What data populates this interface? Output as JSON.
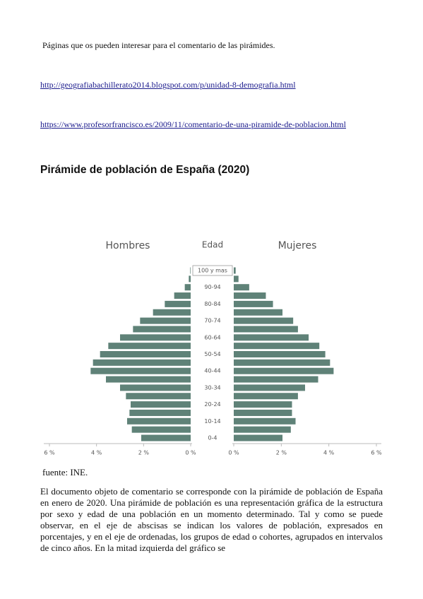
{
  "intro": "Páginas que os pueden interesar para el comentario de las pirámides.",
  "links": [
    "http://geografiabachillerato2014.blogspot.com/p/unidad-8-demografia.html",
    "https://www.profesorfrancisco.es/2009/11/comentario-de-una-piramide-de-poblacion.html"
  ],
  "heading": "Pirámide de población de España (2020)",
  "pyramid": {
    "type": "pyramid",
    "axis_title": "Edad",
    "categories": [
      "0-4",
      null,
      "10-14",
      null,
      "20-24",
      null,
      "30-34",
      null,
      "40-44",
      null,
      "50-54",
      null,
      "60-64",
      null,
      "70-74",
      null,
      "80-84",
      null,
      "90-94",
      null,
      "100 y mas"
    ],
    "series": [
      {
        "name": "Hombres",
        "color": "#5f8278",
        "values": [
          2.1,
          2.5,
          2.7,
          2.6,
          2.55,
          2.75,
          3.0,
          3.6,
          4.25,
          4.15,
          3.85,
          3.5,
          3.0,
          2.45,
          2.15,
          1.6,
          1.1,
          0.7,
          0.25,
          0.08,
          0.02
        ]
      },
      {
        "name": "Mujeres",
        "color": "#5f8278",
        "values": [
          2.05,
          2.4,
          2.6,
          2.45,
          2.45,
          2.7,
          3.0,
          3.55,
          4.2,
          4.05,
          3.85,
          3.6,
          3.15,
          2.7,
          2.5,
          2.05,
          1.65,
          1.35,
          0.65,
          0.2,
          0.08
        ]
      }
    ],
    "xlim": [
      0,
      6
    ],
    "xticks": [
      {
        "value": 0,
        "label": "0 %"
      },
      {
        "value": 2,
        "label": "2 %"
      },
      {
        "value": 4,
        "label": "4 %"
      },
      {
        "value": 6,
        "label": "6 %"
      }
    ]
  },
  "source": "fuente: INE.",
  "paragraph": "El documento objeto de comentario se corresponde con la pirámide de población de España en enero de 2020. Una pirámide de población es una representación gráfica de la estructura por sexo y edad de una población en un momento determinado. Tal y como se puede observar, en el eje de abscisas se indican los valores de población, expresados en porcentajes, y en el eje de ordenadas, los grupos de edad o cohortes, agrupados en intervalos de cinco años. En la mitad izquierda del gráfico se"
}
